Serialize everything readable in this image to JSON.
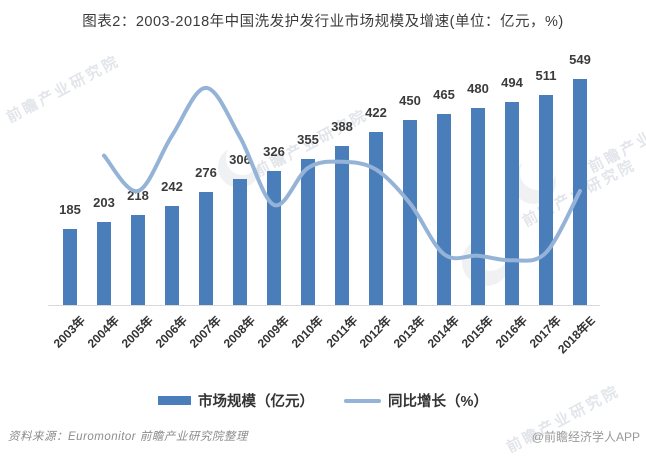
{
  "title": "图表2：2003-2018年中国洗发护发行业市场规模及增速(单位：亿元，%)",
  "chart_data": {
    "type": "bar",
    "title": "图表2：2003-2018年中国洗发护发行业市场规模及增速(单位：亿元，%)",
    "categories": [
      "2003年",
      "2004年",
      "2005年",
      "2006年",
      "2007年",
      "2008年",
      "2009年",
      "2010年",
      "2011年",
      "2012年",
      "2013年",
      "2014年",
      "2015年",
      "2016年",
      "2017年",
      "2018年E"
    ],
    "series": [
      {
        "name": "市场规模（亿元）",
        "type": "bar",
        "values": [
          185,
          203,
          218,
          242,
          276,
          306,
          326,
          355,
          388,
          422,
          450,
          465,
          480,
          494,
          511,
          549
        ]
      },
      {
        "name": "同比增长（%）",
        "type": "line",
        "values": [
          null,
          9.7,
          7.4,
          11.0,
          14.1,
          10.9,
          6.5,
          8.9,
          9.3,
          8.8,
          6.6,
          3.3,
          3.2,
          2.9,
          3.4,
          7.4
        ]
      }
    ],
    "unit": "亿元，%",
    "value_labels": "shown above each bar",
    "grid": false,
    "axes_visible": "x baseline only",
    "legend_position": "bottom"
  },
  "legend": {
    "bar_label": "市场规模（亿元）",
    "line_label": "同比增长（%）"
  },
  "footer": {
    "source": "资料来源：Euromonitor  前瞻产业研究院整理",
    "credit": "@前瞻经济学人APP"
  },
  "watermark": {
    "text": "前瞻产业研究院"
  },
  "colors": {
    "bar": "#4a7ebb",
    "line": "#95b3d7",
    "axis_line": "#d9d9d9",
    "text": "#3b3b3b"
  }
}
